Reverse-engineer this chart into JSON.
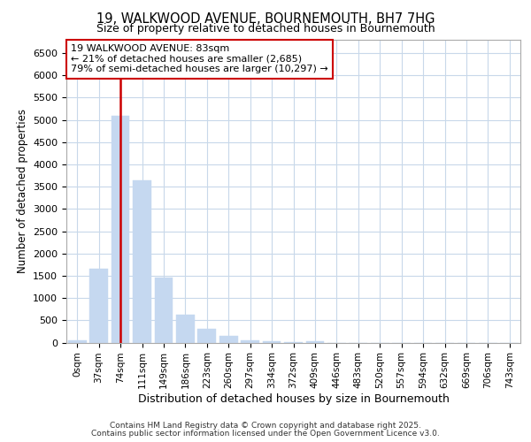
{
  "title1": "19, WALKWOOD AVENUE, BOURNEMOUTH, BH7 7HG",
  "title2": "Size of property relative to detached houses in Bournemouth",
  "xlabel": "Distribution of detached houses by size in Bournemouth",
  "ylabel": "Number of detached properties",
  "categories": [
    "0sqm",
    "37sqm",
    "74sqm",
    "111sqm",
    "149sqm",
    "186sqm",
    "223sqm",
    "260sqm",
    "297sqm",
    "334sqm",
    "372sqm",
    "409sqm",
    "446sqm",
    "483sqm",
    "520sqm",
    "557sqm",
    "594sqm",
    "632sqm",
    "669sqm",
    "706sqm",
    "743sqm"
  ],
  "values": [
    50,
    1650,
    5100,
    3650,
    1450,
    630,
    310,
    145,
    50,
    20,
    10,
    30,
    0,
    0,
    0,
    0,
    0,
    0,
    0,
    0,
    0
  ],
  "bar_color": "#c5d8f0",
  "bar_edgecolor": "#c5d8f0",
  "annotation_text": "19 WALKWOOD AVENUE: 83sqm\n← 21% of detached houses are smaller (2,685)\n79% of semi-detached houses are larger (10,297) →",
  "annotation_box_color": "#ffffff",
  "annotation_box_edgecolor": "#cc0000",
  "vline_color": "#cc0000",
  "grid_color": "#c8d8ea",
  "fig_background": "#ffffff",
  "plot_background": "#ffffff",
  "ylim": [
    0,
    6800
  ],
  "yticks": [
    0,
    500,
    1000,
    1500,
    2000,
    2500,
    3000,
    3500,
    4000,
    4500,
    5000,
    5500,
    6000,
    6500
  ],
  "footer_line1": "Contains HM Land Registry data © Crown copyright and database right 2025.",
  "footer_line2": "Contains public sector information licensed under the Open Government Licence v3.0."
}
